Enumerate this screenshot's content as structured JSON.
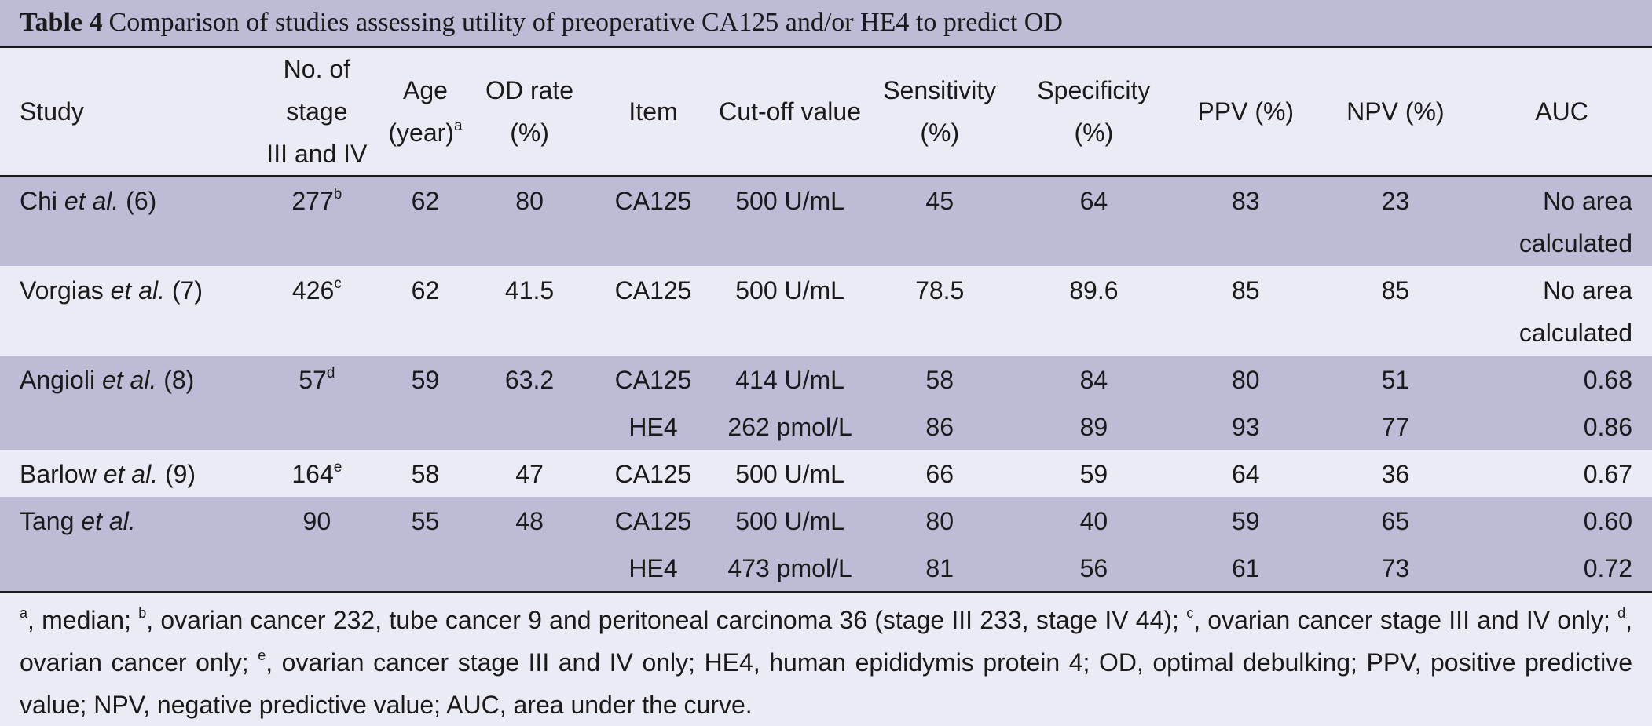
{
  "caption": {
    "label": "Table 4",
    "text": "Comparison of studies assessing utility of preoperative CA125 and/or HE4 to predict OD"
  },
  "headers": {
    "study": "Study",
    "stage_l1": "No. of stage",
    "stage_l2": "III and IV",
    "age_l1": "Age",
    "age_l2": "(year)",
    "age_sup": "a",
    "od_l1": "OD rate",
    "od_l2": "(%)",
    "item": "Item",
    "cutoff": "Cut-off value",
    "sens_l1": "Sensitivity",
    "sens_l2": "(%)",
    "spec_l1": "Specificity",
    "spec_l2": "(%)",
    "ppv": "PPV (%)",
    "npv": "NPV (%)",
    "auc": "AUC"
  },
  "rows": [
    {
      "author": "Chi ",
      "etal": "et al.",
      "ref": " (6)",
      "n": "277",
      "n_sup": "b",
      "age": "62",
      "od": "80",
      "item": "CA125",
      "cutoff": "500 U/mL",
      "sens": "45",
      "spec": "64",
      "ppv": "83",
      "npv": "23",
      "auc_l1": "No area",
      "auc_l2": "calculated"
    },
    {
      "author": "Vorgias ",
      "etal": "et al.",
      "ref": " (7)",
      "n": "426",
      "n_sup": "c",
      "age": "62",
      "od": "41.5",
      "item": "CA125",
      "cutoff": "500 U/mL",
      "sens": "78.5",
      "spec": "89.6",
      "ppv": "85",
      "npv": "85",
      "auc_l1": "No area",
      "auc_l2": "calculated"
    },
    {
      "author": "Angioli ",
      "etal": "et al.",
      "ref": " (8)",
      "n": "57",
      "n_sup": "d",
      "age": "59",
      "od": "63.2",
      "item": "CA125",
      "cutoff": "414 U/mL",
      "sens": "58",
      "spec": "84",
      "ppv": "80",
      "npv": "51",
      "auc": "0.68"
    },
    {
      "item": "HE4",
      "cutoff": "262 pmol/L",
      "sens": "86",
      "spec": "89",
      "ppv": "93",
      "npv": "77",
      "auc": "0.86"
    },
    {
      "author": "Barlow ",
      "etal": "et al.",
      "ref": " (9)",
      "n": "164",
      "n_sup": "e",
      "age": "58",
      "od": "47",
      "item": "CA125",
      "cutoff": "500 U/mL",
      "sens": "66",
      "spec": "59",
      "ppv": "64",
      "npv": "36",
      "auc": "0.67"
    },
    {
      "author": "Tang ",
      "etal": "et al.",
      "ref": "",
      "n": "90",
      "n_sup": "",
      "age": "55",
      "od": "48",
      "item": "CA125",
      "cutoff": "500 U/mL",
      "sens": "80",
      "spec": "40",
      "ppv": "59",
      "npv": "65",
      "auc": "0.60"
    },
    {
      "item": "HE4",
      "cutoff": "473 pmol/L",
      "sens": "81",
      "spec": "56",
      "ppv": "61",
      "npv": "73",
      "auc": "0.72"
    }
  ],
  "footnote": {
    "sup_a": "a",
    "t_a": ", median; ",
    "sup_b": "b",
    "t_b": ", ovarian cancer 232, tube cancer 9 and peritoneal carcinoma 36 (stage III 233, stage IV 44); ",
    "sup_c": "c",
    "t_c": ", ovarian cancer stage III and IV only; ",
    "sup_d": "d",
    "t_d": ", ovarian cancer only; ",
    "sup_e": "e",
    "t_e": ", ovarian cancer stage III and IV only; HE4, human epididymis protein 4; OD, optimal debulking; PPV, positive predictive value; NPV, negative predictive value; AUC, area under the curve."
  }
}
